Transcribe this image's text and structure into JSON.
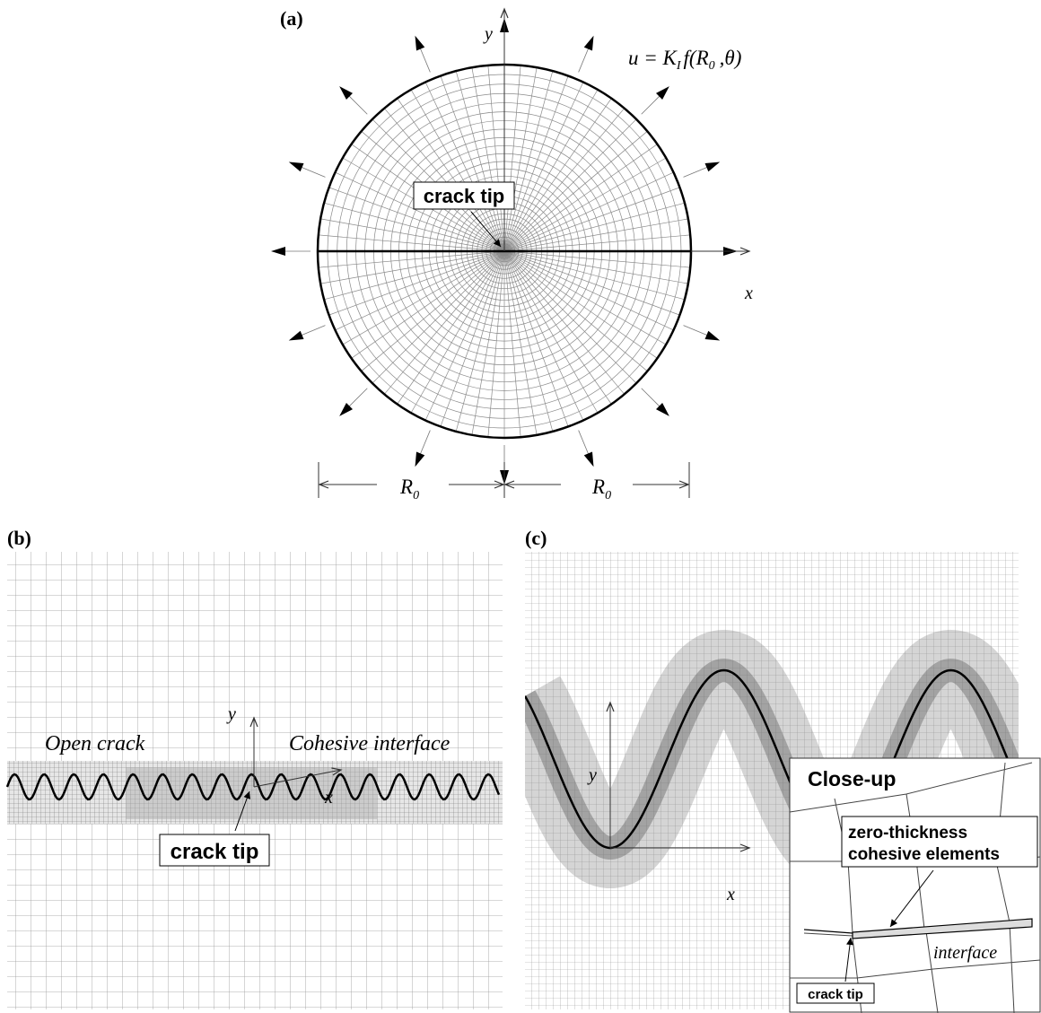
{
  "panel_a": {
    "label": "(a)",
    "y_axis": "y",
    "x_axis": "x",
    "formula": {
      "lhs": "u = K",
      "k_sub": "I",
      "func": "f(R",
      "r_sub": "0",
      "rest": ",θ)"
    },
    "crack_tip": "crack tip",
    "radius_labels": [
      {
        "symbol": "R",
        "sub": "0"
      },
      {
        "symbol": "R",
        "sub": "0"
      }
    ]
  },
  "panel_b": {
    "label": "(b)",
    "open_crack": "Open crack",
    "cohesive_interface": "Cohesive interface",
    "y_axis": "y",
    "x_axis": "x",
    "crack_tip": "crack tip"
  },
  "panel_c": {
    "label": "(c)",
    "y_axis": "y",
    "x_axis": "x",
    "inset": {
      "title": "Close-up",
      "callout": [
        "zero-thickness",
        "cohesive elements"
      ],
      "interface": "interface",
      "crack_tip": "crack tip"
    }
  }
}
